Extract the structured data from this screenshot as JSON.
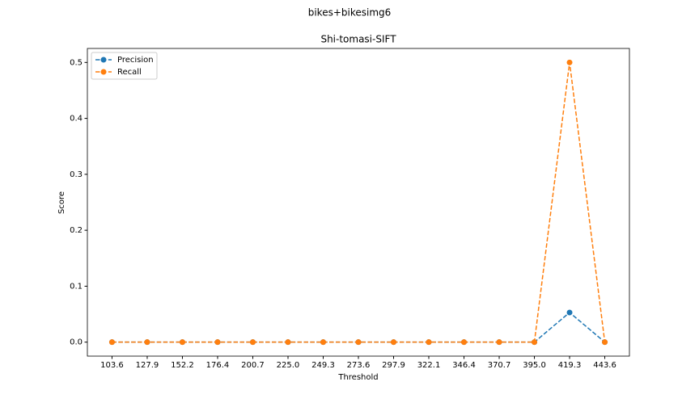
{
  "chart_data": {
    "type": "line",
    "suptitle": "bikes+bikesimg6",
    "title": "Shi-tomasi-SIFT",
    "x_label": "Threshold",
    "y_label": "Score",
    "categories": [
      "103.6",
      "127.9",
      "152.2",
      "176.4",
      "200.7",
      "225.0",
      "249.3",
      "273.6",
      "297.9",
      "322.1",
      "346.4",
      "370.7",
      "395.0",
      "419.3",
      "443.6"
    ],
    "series": [
      {
        "name": "Precision",
        "color": "#1f77b4",
        "values": [
          0,
          0,
          0,
          0,
          0,
          0,
          0,
          0,
          0,
          0,
          0,
          0,
          0,
          0.053,
          0
        ]
      },
      {
        "name": "Recall",
        "color": "#ff7f0e",
        "values": [
          0,
          0,
          0,
          0,
          0,
          0,
          0,
          0,
          0,
          0,
          0,
          0,
          0,
          0.5,
          0
        ]
      }
    ],
    "ylim": [
      -0.025,
      0.525
    ],
    "yticks": [
      {
        "value": 0,
        "label": "0.0"
      },
      {
        "value": 0.1,
        "label": "0.1"
      },
      {
        "value": 0.2,
        "label": "0.2"
      },
      {
        "value": 0.3,
        "label": "0.3"
      },
      {
        "value": 0.4,
        "label": "0.4"
      },
      {
        "value": 0.5,
        "label": "0.5"
      }
    ],
    "legend": "upper-left",
    "grid": false
  }
}
